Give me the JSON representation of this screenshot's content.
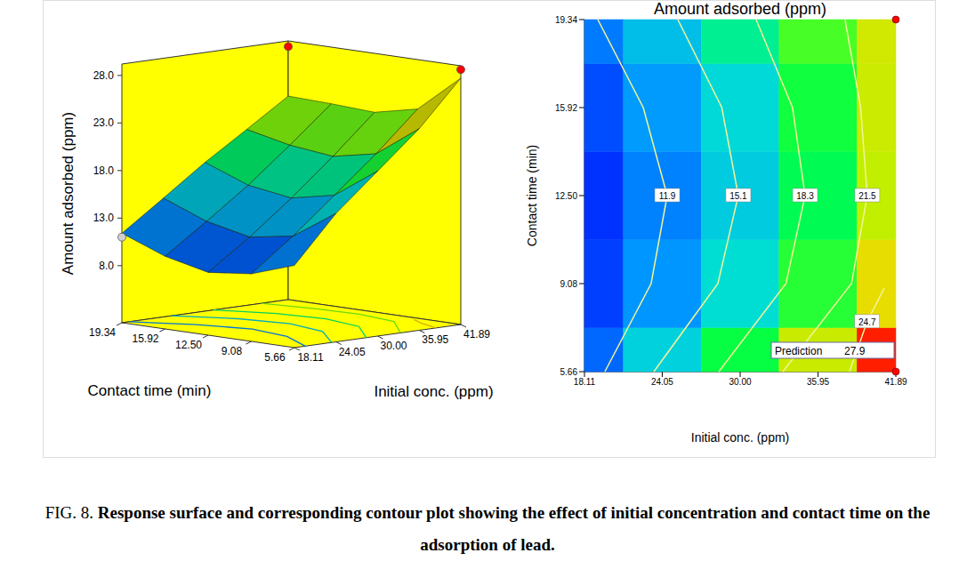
{
  "chart_data": [
    {
      "type": "surface",
      "x_label": "Initial conc. (ppm)",
      "y_label": "Contact time (min)",
      "z_label": "Amount adsorbed (ppm)",
      "x": [
        18.11,
        24.05,
        30,
        35.95,
        41.89
      ],
      "y": [
        5.66,
        9.08,
        12.5,
        15.92,
        19.34
      ],
      "z": [
        [
          10.65,
          15.5,
          19.35,
          23.2,
          27.9
        ],
        [
          9.1,
          12.45,
          16.15,
          19.9,
          24.0
        ],
        [
          8.6,
          11.7,
          15.2,
          18.97,
          23.0
        ],
        [
          9.65,
          12.7,
          15.9,
          19.5,
          23.25
        ],
        [
          11.4,
          14.5,
          17.65,
          20.5,
          23.4
        ]
      ],
      "xlim": [
        18.11,
        41.89
      ],
      "xticks": [
        18.11,
        24.05,
        {
          "value": 30,
          "label": "30.00"
        },
        35.95,
        41.89
      ],
      "ylim": [
        5.66,
        19.34
      ],
      "yticks": [
        5.66,
        9.08,
        {
          "value": 12.5,
          "label": "12.50"
        },
        15.92,
        19.34
      ],
      "zlim": [
        2,
        29.2
      ],
      "zticks": [
        {
          "value": 8,
          "label": "8.0"
        },
        {
          "value": 13,
          "label": "13.0"
        },
        {
          "value": 18,
          "label": "18.0"
        },
        {
          "value": 23,
          "label": "23.0"
        },
        {
          "value": 28,
          "label": "28.0"
        }
      ],
      "design_points": [
        {
          "x": 41.89,
          "y": 19.34,
          "z": 28.6,
          "color": "#ff0000"
        },
        {
          "x": 41.89,
          "y": 5.66,
          "z": 28.8,
          "color": "#ff0000"
        },
        {
          "x": 18.11,
          "y": 19.34,
          "z": 11.0,
          "color": "#d0d0d0"
        }
      ]
    },
    {
      "type": "contour",
      "title": "Amount adsorbed (ppm)",
      "x_label": "Initial conc. (ppm)",
      "y_label": "Contact time (min)",
      "x": [
        18.11,
        24.05,
        30,
        35.95,
        41.89
      ],
      "y": [
        5.66,
        9.08,
        12.5,
        15.92,
        19.34
      ],
      "z": [
        [
          10.65,
          15.5,
          19.35,
          23.2,
          27.9
        ],
        [
          9.1,
          12.45,
          16.15,
          19.9,
          24.0
        ],
        [
          8.6,
          11.7,
          15.2,
          18.97,
          23.0
        ],
        [
          9.65,
          12.7,
          15.9,
          19.5,
          23.25
        ],
        [
          11.4,
          14.5,
          17.65,
          20.5,
          23.4
        ]
      ],
      "xlim": [
        18.11,
        41.89
      ],
      "xticks": [
        18.11,
        24.05,
        {
          "value": 30,
          "label": "30.00"
        },
        35.95,
        41.89
      ],
      "ylim": [
        5.66,
        19.34
      ],
      "yticks": [
        5.66,
        9.08,
        {
          "value": 12.5,
          "label": "12.50"
        },
        15.92,
        19.34
      ],
      "contours": [
        {
          "level": 11.9,
          "color": "#f4f49a",
          "points": [
            [
              19.13,
              19.34
            ],
            [
              22.6,
              15.92
            ],
            [
              24.43,
              12.5
            ],
            [
              23.2,
              9.08
            ],
            [
              19.67,
              5.66
            ]
          ]
        },
        {
          "level": 15.1,
          "color": "#f4f49a",
          "points": [
            [
              25.24,
              19.34
            ],
            [
              28.6,
              15.92
            ],
            [
              29.86,
              12.5
            ],
            [
              28.3,
              9.08
            ],
            [
              23.41,
              5.66
            ]
          ]
        },
        {
          "level": 18.3,
          "color": "#f4f49a",
          "points": [
            [
              31.22,
              19.34
            ],
            [
              34.0,
              15.92
            ],
            [
              34.96,
              12.5
            ],
            [
              33.5,
              9.08
            ],
            [
              28.37,
              5.66
            ]
          ]
        },
        {
          "level": 21.5,
          "color": "#f4f49a",
          "points": [
            [
              38.01,
              19.34
            ],
            [
              39.2,
              15.92
            ],
            [
              39.71,
              12.5
            ],
            [
              38.5,
              9.08
            ],
            [
              33.26,
              5.66
            ]
          ]
        },
        {
          "level": 24.7,
          "color": "#f4f49a",
          "points": [
            [
              38.35,
              5.66
            ],
            [
              39.7,
              7.6
            ],
            [
              41.0,
              8.9
            ]
          ]
        }
      ],
      "design_points": [
        {
          "x": 41.89,
          "y": 19.34,
          "color": "#ff0000"
        },
        {
          "x": 41.89,
          "y": 5.66,
          "color": "#ff0000"
        }
      ],
      "prediction": {
        "label": "Prediction",
        "x": 41.89,
        "y": 5.66,
        "value": 27.9
      }
    }
  ],
  "caption": {
    "label": "FIG. 8.",
    "text": "Response surface and corresponding contour plot showing the effect of initial concentration and contact time on the adsorption of lead."
  }
}
